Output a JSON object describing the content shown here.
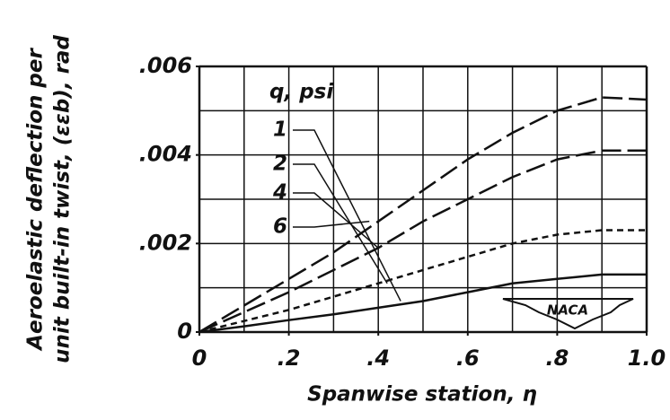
{
  "chart_data": {
    "type": "line",
    "ylabel": [
      "Aeroelastic deflection per",
      "unit built-in twist, (εεb), rad"
    ],
    "xlabel": "Spanwise station, η",
    "legend_title": "q, psi",
    "logo": "NACA",
    "x": [
      0,
      0.1,
      0.2,
      0.3,
      0.4,
      0.5,
      0.6,
      0.7,
      0.8,
      0.9,
      1.0
    ],
    "series": [
      {
        "name": "1",
        "color": "#111111",
        "dash": "solid",
        "values": [
          0,
          0.00013,
          0.00027,
          0.0004,
          0.00055,
          0.0007,
          0.0009,
          0.0011,
          0.0012,
          0.0013,
          0.0013
        ]
      },
      {
        "name": "2",
        "color": "#111111",
        "dash": "short",
        "values": [
          0,
          0.00025,
          0.0005,
          0.0008,
          0.0011,
          0.0014,
          0.0017,
          0.002,
          0.0022,
          0.0023,
          0.0023
        ]
      },
      {
        "name": "4",
        "color": "#111111",
        "dash": "long",
        "values": [
          0,
          0.00045,
          0.0009,
          0.0014,
          0.0019,
          0.0025,
          0.003,
          0.0035,
          0.0039,
          0.0041,
          0.0041
        ]
      },
      {
        "name": "6",
        "color": "#111111",
        "dash": "long",
        "values": [
          0,
          0.0006,
          0.0012,
          0.0018,
          0.0025,
          0.0032,
          0.0039,
          0.0045,
          0.005,
          0.0053,
          0.00525
        ]
      }
    ],
    "xlim": [
      0,
      1.0
    ],
    "ylim": [
      0,
      0.006
    ],
    "xticks": [
      0,
      {
        "value": 0.2,
        "label": ".2"
      },
      {
        "value": 0.4,
        "label": ".4"
      },
      {
        "value": 0.6,
        "label": ".6"
      },
      {
        "value": 0.8,
        "label": ".8"
      },
      {
        "value": 1.0,
        "label": "1.0"
      }
    ],
    "yticks": [
      0,
      {
        "value": 0.002,
        "label": ".002"
      },
      {
        "value": 0.004,
        "label": ".004"
      },
      {
        "value": 0.006,
        "label": ".006"
      }
    ],
    "grid_step_x": 0.1,
    "grid_step_y": 0.001
  }
}
